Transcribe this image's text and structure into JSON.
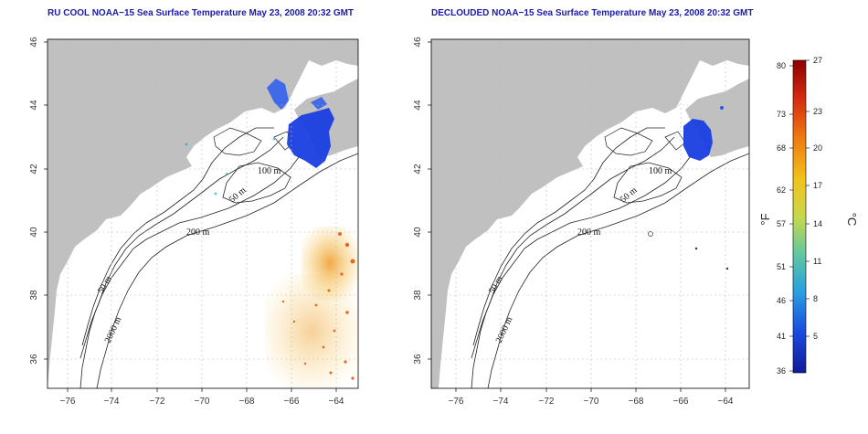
{
  "panels": [
    {
      "title": "RU COOL NOAA−15 Sea Surface Temperature May 23, 2008 20:32 GMT",
      "contour_labels": [
        "100 m",
        "50 m",
        "200 m",
        "50 m",
        "2000 m"
      ]
    },
    {
      "title": "DECLOUDED NOAA−15 Sea Surface Temperature May 23, 2008 20:32 GMT",
      "contour_labels": [
        "100 m",
        "50 m",
        "200 m",
        "50 m",
        "2000 m"
      ]
    }
  ],
  "axes": {
    "lat_ticks": [
      "46",
      "44",
      "42",
      "40",
      "38",
      "36"
    ],
    "lon_ticks": [
      "−76",
      "−74",
      "−72",
      "−70",
      "−68",
      "−66",
      "−64"
    ]
  },
  "colorbar": {
    "fahrenheit_ticks": [
      "80",
      "73",
      "68",
      "62",
      "57",
      "51",
      "46",
      "41",
      "36"
    ],
    "celsius_ticks": [
      "27",
      "23",
      "20",
      "17",
      "14",
      "11",
      "8",
      "5"
    ],
    "f_unit": "°F",
    "c_unit": "°C",
    "colors": [
      "#8b0000",
      "#d42a10",
      "#f07a10",
      "#f2c21a",
      "#c8d84a",
      "#60c8a0",
      "#2aa0e0",
      "#1a4ae0",
      "#101a9a"
    ]
  },
  "colors": {
    "land": "#c0c0c0",
    "ocean": "#ffffff",
    "frame": "#000000",
    "title": "#1a1aa8"
  }
}
